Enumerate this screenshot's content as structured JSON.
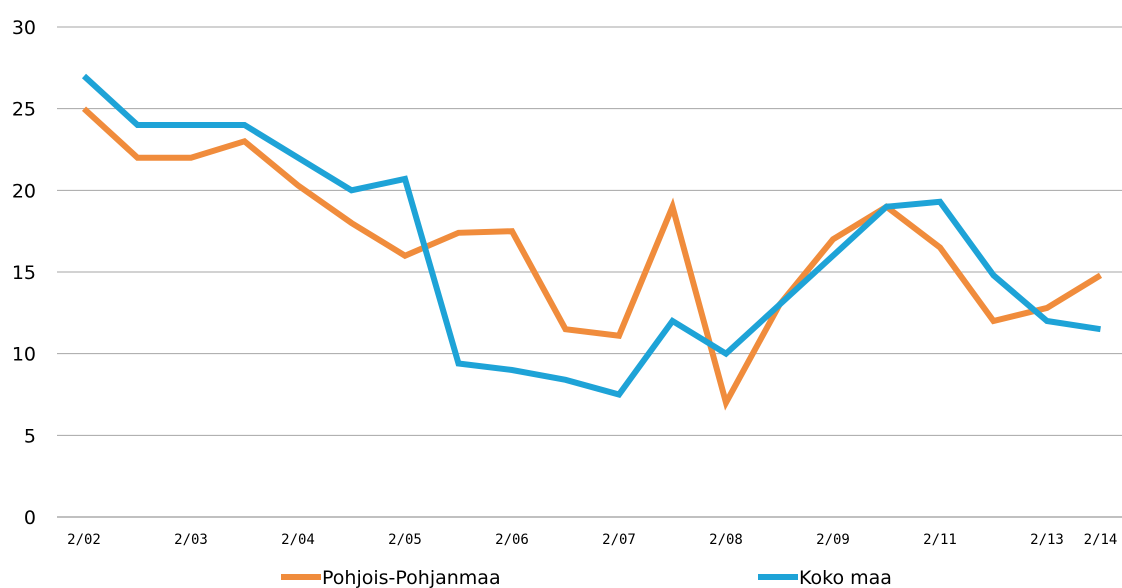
{
  "chart_data": {
    "type": "line",
    "title": "",
    "xlabel": "",
    "ylabel": "",
    "ylim": [
      0,
      30
    ],
    "yticks": [
      "0",
      "5",
      "10",
      "15",
      "20",
      "25",
      "30"
    ],
    "grid": "horizontal",
    "legend_position": "bottom",
    "x_tick_labels": [
      {
        "i": 0,
        "label": "2/02"
      },
      {
        "i": 2,
        "label": "2/03"
      },
      {
        "i": 4,
        "label": "2/04"
      },
      {
        "i": 6,
        "label": "2/05"
      },
      {
        "i": 8,
        "label": "2/06"
      },
      {
        "i": 10,
        "label": "2/07"
      },
      {
        "i": 12,
        "label": "2/08"
      },
      {
        "i": 14,
        "label": "2/09"
      },
      {
        "i": 16,
        "label": "2/11"
      },
      {
        "i": 18,
        "label": "2/13"
      },
      {
        "i": 19,
        "label": "2/14"
      }
    ],
    "series": [
      {
        "name": "Pohjois-Pohjanmaa",
        "color": "#F08C3C",
        "values": [
          25,
          22,
          22,
          23,
          20.3,
          18,
          16,
          17.4,
          17.5,
          11.5,
          11.1,
          19,
          7,
          13,
          17,
          19,
          16.5,
          12,
          12.8,
          14.8
        ]
      },
      {
        "name": "Koko maa",
        "color": "#1EA3D7",
        "values": [
          27,
          24,
          24,
          24,
          22,
          20,
          20.7,
          9.4,
          9,
          8.4,
          7.5,
          12,
          10,
          13,
          16,
          19,
          19.3,
          14.8,
          12,
          11.5
        ]
      }
    ]
  }
}
